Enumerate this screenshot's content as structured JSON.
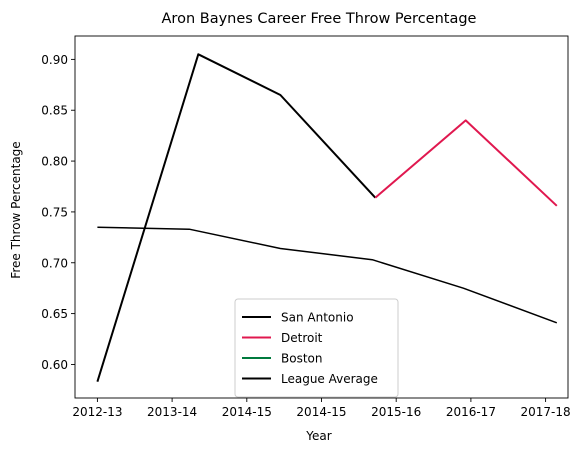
{
  "chart_data": {
    "type": "line",
    "title": "Aron Baynes Career Free Throw Percentage",
    "xlabel": "Year",
    "ylabel": "Free Throw Percentage",
    "x_tick_labels": [
      "2012-13",
      "2013-14",
      "2014-15",
      "2014-15",
      "2015-16",
      "2016-17",
      "2017-18"
    ],
    "x_tick_values": [
      0,
      1,
      2,
      3,
      4,
      5,
      6
    ],
    "ylim": [
      0.567,
      0.923
    ],
    "xlim": [
      -0.3,
      6.3
    ],
    "y_ticks": [
      0.6,
      0.65,
      0.7,
      0.75,
      0.8,
      0.85,
      0.9
    ],
    "y_tick_labels": [
      "0.60",
      "0.65",
      "0.70",
      "0.75",
      "0.80",
      "0.85",
      "0.90"
    ],
    "series": [
      {
        "name": "San Antonio",
        "color": "#000000",
        "line_width": 2,
        "points": [
          {
            "x": 0.0,
            "y": 0.583
          },
          {
            "x": 1.35,
            "y": 0.905
          },
          {
            "x": 2.45,
            "y": 0.865
          },
          {
            "x": 3.72,
            "y": 0.764
          }
        ]
      },
      {
        "name": "Detroit",
        "color": "#e0184f",
        "line_width": 2,
        "points": [
          {
            "x": 3.72,
            "y": 0.764
          },
          {
            "x": 4.93,
            "y": 0.84
          },
          {
            "x": 6.15,
            "y": 0.756
          }
        ]
      },
      {
        "name": "Boston",
        "color": "#007a3d",
        "line_width": 2,
        "points": []
      },
      {
        "name": "League Average",
        "color": "#000000",
        "line_width": 1.5,
        "points": [
          {
            "x": 0.0,
            "y": 0.735
          },
          {
            "x": 1.23,
            "y": 0.733
          },
          {
            "x": 2.45,
            "y": 0.714
          },
          {
            "x": 3.68,
            "y": 0.703
          },
          {
            "x": 4.9,
            "y": 0.675
          },
          {
            "x": 6.15,
            "y": 0.641
          }
        ]
      }
    ],
    "legend_position": "lower-center"
  }
}
